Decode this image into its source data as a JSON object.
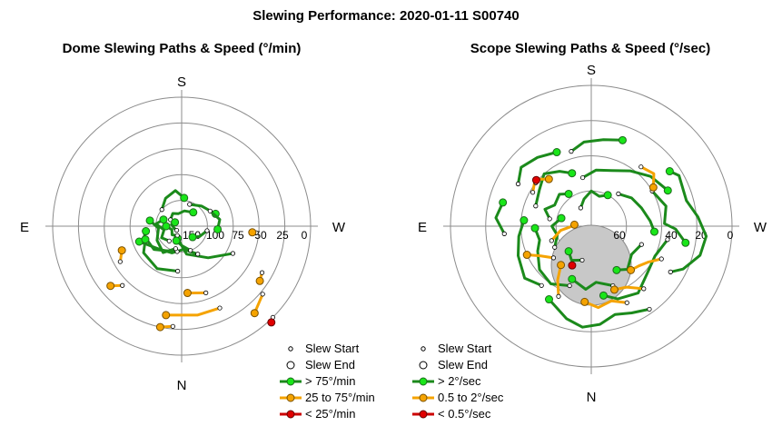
{
  "title": "Slewing Performance: 2020-01-11 S00740",
  "colors": {
    "fast": "#1b8a1b",
    "fast_fill": "#19e619",
    "medium": "#f5a300",
    "slow": "#cc0000",
    "ring": "#8c8c8c",
    "shade": "#c8c8c8"
  },
  "chart_data": [
    {
      "type": "scatter",
      "subtype": "polar",
      "title": "Dome Slewing Paths & Speed (°/min)",
      "compass": {
        "top": "S",
        "bottom": "N",
        "left": "E",
        "right": "W"
      },
      "radial_tick_labels": [
        "150",
        "100",
        "75",
        "50",
        "25",
        "0"
      ],
      "legend": [
        {
          "label": "Slew Start",
          "marker": "start"
        },
        {
          "label": "Slew End",
          "marker": "end"
        },
        {
          "label": "> 75°/min",
          "marker": "fast"
        },
        {
          "label": "25 to 75°/min",
          "marker": "medium"
        },
        {
          "label": "< 25°/min",
          "marker": "slow"
        }
      ],
      "paths": [
        {
          "category": "fast",
          "points": [
            [
              118,
              45
            ],
            [
              140,
              32
            ],
            [
              170,
              22
            ],
            [
              198,
              10
            ]
          ]
        },
        {
          "category": "fast",
          "points": [
            [
              150,
              25
            ],
            [
              175,
              18
            ],
            [
              200,
              22
            ],
            [
              225,
              25
            ],
            [
              250,
              35
            ]
          ]
        },
        {
          "category": "fast",
          "points": [
            [
              190,
              20
            ],
            [
              210,
              22
            ],
            [
              230,
              28
            ],
            [
              255,
              30
            ],
            [
              262,
              28
            ]
          ]
        },
        {
          "category": "fast",
          "points": [
            [
              195,
              18
            ],
            [
              215,
              25
            ],
            [
              240,
              22
            ],
            [
              265,
              18
            ],
            [
              280,
              25
            ]
          ]
        },
        {
          "category": "fast",
          "points": [
            [
              205,
              8
            ],
            [
              228,
              10
            ],
            [
              250,
              8
            ],
            [
              270,
              12
            ]
          ]
        },
        {
          "category": "fast",
          "points": [
            [
              185,
              35
            ],
            [
              210,
              38
            ],
            [
              235,
              36
            ],
            [
              250,
              30
            ]
          ]
        },
        {
          "category": "fast",
          "points": [
            [
              220,
              15
            ],
            [
              240,
              18
            ],
            [
              258,
              14
            ],
            [
              275,
              20
            ],
            [
              290,
              15
            ]
          ]
        },
        {
          "category": "fast",
          "points": [
            [
              160,
              20
            ],
            [
              180,
              15
            ],
            [
              200,
              12
            ]
          ]
        },
        {
          "category": "fast",
          "points": [
            [
              310,
              20
            ],
            [
              330,
              25
            ],
            [
              350,
              28
            ],
            [
              5,
              22
            ]
          ]
        },
        {
          "category": "fast",
          "points": [
            [
              20,
              18
            ],
            [
              45,
              22
            ],
            [
              70,
              28
            ]
          ]
        },
        {
          "category": "fast",
          "points": [
            [
              300,
              10
            ],
            [
              325,
              12
            ],
            [
              345,
              10
            ],
            [
              10,
              12
            ],
            [
              40,
              14
            ]
          ]
        },
        {
          "category": "fast",
          "points": [
            [
              230,
              5
            ],
            [
              255,
              6
            ],
            [
              280,
              8
            ],
            [
              300,
              6
            ]
          ]
        },
        {
          "category": "fast",
          "points": [
            [
              62,
              25
            ],
            [
              80,
              30
            ],
            [
              95,
              28
            ]
          ]
        },
        {
          "category": "fast",
          "points": [
            [
              100,
              20
            ],
            [
              120,
              16
            ],
            [
              135,
              12
            ]
          ]
        },
        {
          "category": "medium",
          "points": [
            [
              130,
              82
            ],
            [
              140,
              88
            ]
          ]
        },
        {
          "category": "medium",
          "points": [
            [
              155,
              70
            ],
            [
              170,
              70
            ],
            [
              190,
              70
            ]
          ]
        },
        {
          "category": "medium",
          "points": [
            [
              160,
              55
            ],
            [
              175,
              52
            ]
          ]
        },
        {
          "category": "medium",
          "points": [
            [
              225,
              65
            ],
            [
              230,
              72
            ]
          ]
        },
        {
          "category": "medium",
          "points": [
            [
              240,
              55
            ],
            [
              248,
              50
            ]
          ]
        },
        {
          "category": "medium",
          "points": [
            [
              95,
              58
            ],
            [
              95,
              55
            ]
          ]
        },
        {
          "category": "medium",
          "points": [
            [
              120,
              72
            ],
            [
              125,
              74
            ]
          ]
        },
        {
          "category": "medium",
          "points": [
            [
              185,
              78
            ],
            [
              192,
              80
            ]
          ]
        },
        {
          "category": "slow",
          "points": [
            [
              135,
              100
            ],
            [
              137,
              102
            ]
          ]
        }
      ]
    },
    {
      "type": "scatter",
      "subtype": "polar",
      "title": "Scope Slewing Paths & Speed (°/sec)",
      "compass": {
        "top": "S",
        "bottom": "N",
        "left": "E",
        "right": "W"
      },
      "radial_tick_labels": [
        "60",
        "40",
        "20",
        "0"
      ],
      "legend": [
        {
          "label": "Slew Start",
          "marker": "start"
        },
        {
          "label": "Slew End",
          "marker": "end"
        },
        {
          "label": "> 2°/sec",
          "marker": "fast"
        },
        {
          "label": "0.5 to 2°/sec",
          "marker": "medium"
        },
        {
          "label": "< 0.5°/sec",
          "marker": "slow"
        }
      ],
      "paths": [
        {
          "category": "fast",
          "points": [
            [
              120,
              65
            ],
            [
              115,
              72
            ],
            [
              105,
              80
            ],
            [
              95,
              82
            ],
            [
              85,
              76
            ],
            [
              75,
              70
            ],
            [
              60,
              72
            ],
            [
              55,
              68
            ]
          ]
        },
        {
          "category": "fast",
          "points": [
            [
              145,
              72
            ],
            [
              155,
              68
            ],
            [
              165,
              65
            ],
            [
              175,
              70
            ],
            [
              185,
              72
            ],
            [
              195,
              68
            ],
            [
              210,
              60
            ]
          ]
        },
        {
          "category": "fast",
          "points": [
            [
              220,
              55
            ],
            [
              232,
              60
            ],
            [
              248,
              56
            ],
            [
              262,
              52
            ],
            [
              275,
              48
            ]
          ]
        },
        {
          "category": "fast",
          "points": [
            [
              290,
              42
            ],
            [
              305,
              45
            ],
            [
              318,
              50
            ],
            [
              330,
              45
            ],
            [
              340,
              40
            ]
          ]
        },
        {
          "category": "fast",
          "points": [
            [
              350,
              35
            ],
            [
              5,
              40
            ],
            [
              20,
              42
            ],
            [
              35,
              48
            ],
            [
              50,
              55
            ],
            [
              65,
              60
            ]
          ]
        },
        {
          "category": "fast",
          "points": [
            [
              100,
              55
            ],
            [
              115,
              50
            ],
            [
              130,
              52
            ],
            [
              145,
              58
            ],
            [
              160,
              55
            ],
            [
              170,
              50
            ]
          ]
        },
        {
          "category": "fast",
          "points": [
            [
              200,
              45
            ],
            [
              215,
              50
            ],
            [
              230,
              48
            ],
            [
              245,
              42
            ],
            [
              255,
              38
            ],
            [
              268,
              40
            ]
          ]
        },
        {
          "category": "fast",
          "points": [
            [
              280,
              30
            ],
            [
              290,
              35
            ],
            [
              300,
              30
            ],
            [
              315,
              32
            ],
            [
              325,
              28
            ]
          ]
        },
        {
          "category": "fast",
          "points": [
            [
              40,
              30
            ],
            [
              55,
              35
            ],
            [
              70,
              38
            ],
            [
              85,
              42
            ],
            [
              95,
              45
            ]
          ]
        },
        {
          "category": "fast",
          "points": [
            [
              160,
              45
            ],
            [
              175,
              40
            ],
            [
              185,
              45
            ],
            [
              200,
              40
            ]
          ]
        },
        {
          "category": "fast",
          "points": [
            [
              240,
              30
            ],
            [
              255,
              25
            ],
            [
              270,
              28
            ],
            [
              285,
              22
            ]
          ]
        },
        {
          "category": "fast",
          "points": [
            [
              330,
              15
            ],
            [
              345,
              20
            ],
            [
              0,
              25
            ],
            [
              15,
              22
            ],
            [
              28,
              25
            ]
          ]
        },
        {
          "category": "fast",
          "points": [
            [
              110,
              38
            ],
            [
              125,
              35
            ],
            [
              140,
              40
            ],
            [
              150,
              36
            ]
          ]
        },
        {
          "category": "fast",
          "points": [
            [
              60,
              50
            ],
            [
              75,
              55
            ],
            [
              88,
              52
            ],
            [
              92,
              60
            ],
            [
              100,
              68
            ]
          ]
        },
        {
          "category": "fast",
          "points": [
            [
              300,
              60
            ],
            [
              310,
              65
            ],
            [
              322,
              62
            ],
            [
              335,
              58
            ]
          ]
        },
        {
          "category": "fast",
          "points": [
            [
              195,
              25
            ],
            [
              210,
              28
            ],
            [
              222,
              24
            ]
          ]
        },
        {
          "category": "fast",
          "points": [
            [
              265,
              62
            ],
            [
              275,
              68
            ],
            [
              285,
              65
            ]
          ]
        },
        {
          "category": "fast",
          "points": [
            [
              345,
              55
            ],
            [
              355,
              60
            ],
            [
              8,
              62
            ],
            [
              20,
              65
            ]
          ]
        },
        {
          "category": "medium",
          "points": [
            [
              155,
              60
            ],
            [
              165,
              55
            ],
            [
              175,
              58
            ],
            [
              185,
              54
            ]
          ]
        },
        {
          "category": "medium",
          "points": [
            [
              205,
              55
            ],
            [
              212,
              45
            ],
            [
              218,
              35
            ]
          ]
        },
        {
          "category": "medium",
          "points": [
            [
              250,
              30
            ],
            [
              262,
              22
            ],
            [
              268,
              15
            ],
            [
              275,
              12
            ]
          ]
        },
        {
          "category": "medium",
          "points": [
            [
              140,
              58
            ],
            [
              150,
              50
            ],
            [
              160,
              48
            ]
          ]
        },
        {
          "category": "medium",
          "points": [
            [
              115,
              55
            ],
            [
              122,
              48
            ],
            [
              130,
              44
            ],
            [
              138,
              42
            ]
          ]
        },
        {
          "category": "medium",
          "points": [
            [
              40,
              55
            ],
            [
              50,
              58
            ],
            [
              58,
              52
            ]
          ]
        },
        {
          "category": "medium",
          "points": [
            [
              300,
              48
            ],
            [
              310,
              52
            ],
            [
              318,
              45
            ]
          ]
        },
        {
          "category": "medium",
          "points": [
            [
              230,
              35
            ],
            [
              240,
              42
            ],
            [
              246,
              50
            ]
          ]
        },
        {
          "category": "slow",
          "points": [
            [
              308,
              50
            ],
            [
              310,
              51
            ]
          ]
        },
        {
          "category": "slow",
          "points": [
            [
              205,
              30
            ],
            [
              206,
              31
            ]
          ]
        }
      ]
    }
  ]
}
